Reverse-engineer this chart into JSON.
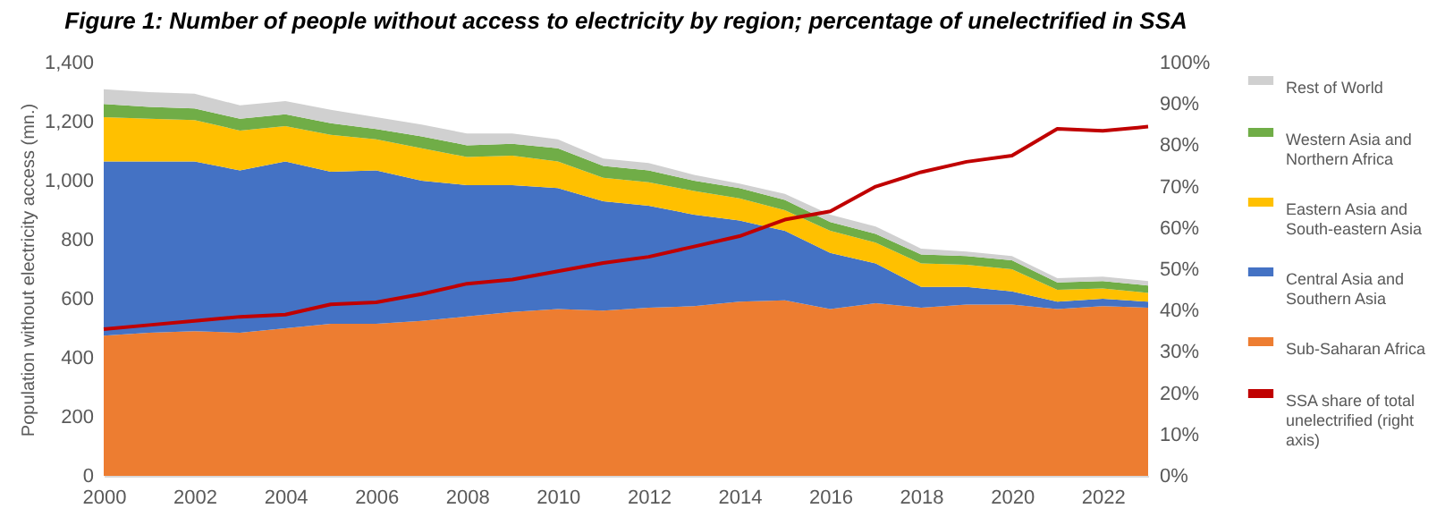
{
  "chart_data": {
    "type": "area",
    "stacked": true,
    "title": "Figure 1: Number of people without access to electricity by region; percentage of unelectrified in SSA",
    "ylabel": "Population without electricity access (mn.)",
    "x": [
      2000,
      2001,
      2002,
      2003,
      2004,
      2005,
      2006,
      2007,
      2008,
      2009,
      2010,
      2011,
      2012,
      2013,
      2014,
      2015,
      2016,
      2017,
      2018,
      2019,
      2020,
      2021,
      2022,
      2023
    ],
    "xlim": [
      2000,
      2023
    ],
    "xticks": [
      2000,
      2002,
      2004,
      2006,
      2008,
      2010,
      2012,
      2014,
      2016,
      2018,
      2020,
      2022
    ],
    "ylim": [
      0,
      1400
    ],
    "yticks": [
      0,
      200,
      400,
      600,
      800,
      {
        "value": 1000,
        "label": "1,000"
      },
      {
        "value": 1200,
        "label": "1,200"
      },
      {
        "value": 1400,
        "label": "1,400"
      }
    ],
    "y2lim": [
      0,
      100
    ],
    "y2ticks": [
      {
        "value": 0,
        "label": "0%"
      },
      {
        "value": 10,
        "label": "10%"
      },
      {
        "value": 20,
        "label": "20%"
      },
      {
        "value": 30,
        "label": "30%"
      },
      {
        "value": 40,
        "label": "40%"
      },
      {
        "value": 50,
        "label": "50%"
      },
      {
        "value": 60,
        "label": "60%"
      },
      {
        "value": 70,
        "label": "70%"
      },
      {
        "value": 80,
        "label": "80%"
      },
      {
        "value": 90,
        "label": "90%"
      },
      {
        "value": 100,
        "label": "100%"
      }
    ],
    "grid": false,
    "legend": "right",
    "marker": "none",
    "series": [
      {
        "name": "Sub-Saharan Africa",
        "color": "#ed7d31",
        "values": [
          475,
          485,
          490,
          485,
          500,
          515,
          515,
          525,
          540,
          555,
          565,
          560,
          570,
          575,
          590,
          595,
          565,
          585,
          570,
          580,
          580,
          565,
          575,
          570
        ]
      },
      {
        "name": "Central Asia and Southern Asia",
        "color": "#4472c4",
        "values": [
          590,
          580,
          575,
          550,
          565,
          515,
          520,
          475,
          445,
          430,
          410,
          370,
          345,
          310,
          275,
          235,
          190,
          135,
          70,
          60,
          45,
          25,
          25,
          20
        ]
      },
      {
        "name": "Eastern Asia and South-eastern Asia",
        "color": "#ffc000",
        "values": [
          150,
          145,
          140,
          135,
          120,
          125,
          105,
          110,
          95,
          100,
          90,
          80,
          80,
          80,
          75,
          70,
          75,
          70,
          80,
          75,
          75,
          40,
          35,
          30
        ]
      },
      {
        "name": "Western Asia and Northern Africa",
        "color": "#70ad47",
        "values": [
          45,
          40,
          40,
          40,
          40,
          40,
          35,
          40,
          40,
          40,
          45,
          40,
          40,
          35,
          35,
          35,
          30,
          30,
          30,
          30,
          30,
          25,
          25,
          25
        ]
      },
      {
        "name": "Rest of World",
        "color": "#d0d0d0",
        "values": [
          50,
          50,
          50,
          45,
          45,
          45,
          40,
          40,
          40,
          35,
          30,
          25,
          25,
          20,
          15,
          20,
          25,
          25,
          20,
          15,
          15,
          15,
          15,
          15
        ]
      },
      {
        "name": "SSA share of total unelectrified (right axis)",
        "color": "#c00000",
        "type": "line",
        "axis": "y2",
        "values": [
          35.5,
          36.5,
          37.5,
          38.5,
          39,
          41.5,
          42,
          44,
          46.5,
          47.5,
          49.5,
          51.5,
          53,
          55.5,
          58,
          62,
          64,
          70,
          73.5,
          76,
          77.5,
          84,
          83.5,
          84.5
        ]
      }
    ]
  }
}
